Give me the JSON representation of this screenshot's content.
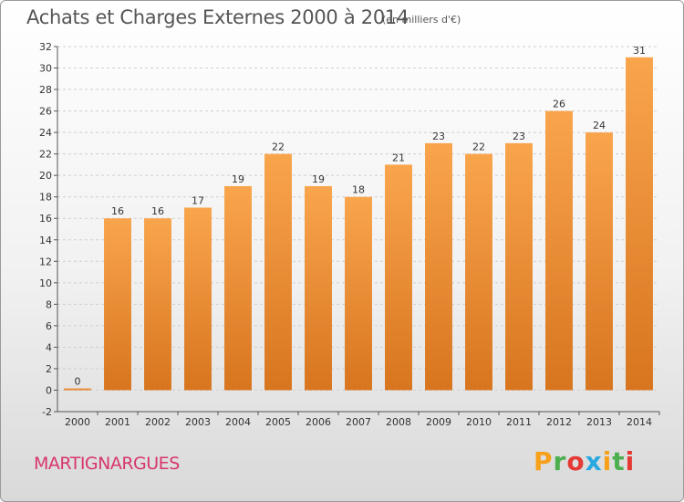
{
  "title": "Achats et Charges Externes 2000 à 2014",
  "unit_note": "(en milliers d'€)",
  "commune": "MARTIGNARGUES",
  "logo": {
    "text": "Proxiti",
    "letters": [
      "P",
      "r",
      "o",
      "x",
      "i",
      "t",
      "i"
    ],
    "colors": [
      "#f7a11a",
      "#4caf50",
      "#e53935",
      "#29a9e0",
      "#f7a11a",
      "#4caf50",
      "#e53935"
    ]
  },
  "colors": {
    "bar_light": "#f9a54c",
    "bar_dark": "#d8751f",
    "grid": "#cfcfcf",
    "commune": "#d8366b",
    "title": "#555555"
  },
  "chart_data": {
    "type": "bar",
    "categories": [
      "2000",
      "2001",
      "2002",
      "2003",
      "2004",
      "2005",
      "2006",
      "2007",
      "2008",
      "2009",
      "2010",
      "2011",
      "2012",
      "2013",
      "2014"
    ],
    "values": [
      0,
      16,
      16,
      17,
      19,
      22,
      19,
      18,
      21,
      23,
      22,
      23,
      26,
      24,
      31
    ],
    "data_labels": [
      "0",
      "16",
      "16",
      "17",
      "19",
      "22",
      "19",
      "18",
      "21",
      "23",
      "22",
      "23",
      "26",
      "24",
      "31"
    ],
    "ylim": [
      -2,
      32
    ],
    "yticks": [
      -2,
      0,
      2,
      4,
      6,
      8,
      10,
      12,
      14,
      16,
      18,
      20,
      22,
      24,
      26,
      28,
      30,
      32
    ],
    "grid": "horizontal dashed",
    "legend": "none",
    "xlabel": "",
    "ylabel": ""
  }
}
